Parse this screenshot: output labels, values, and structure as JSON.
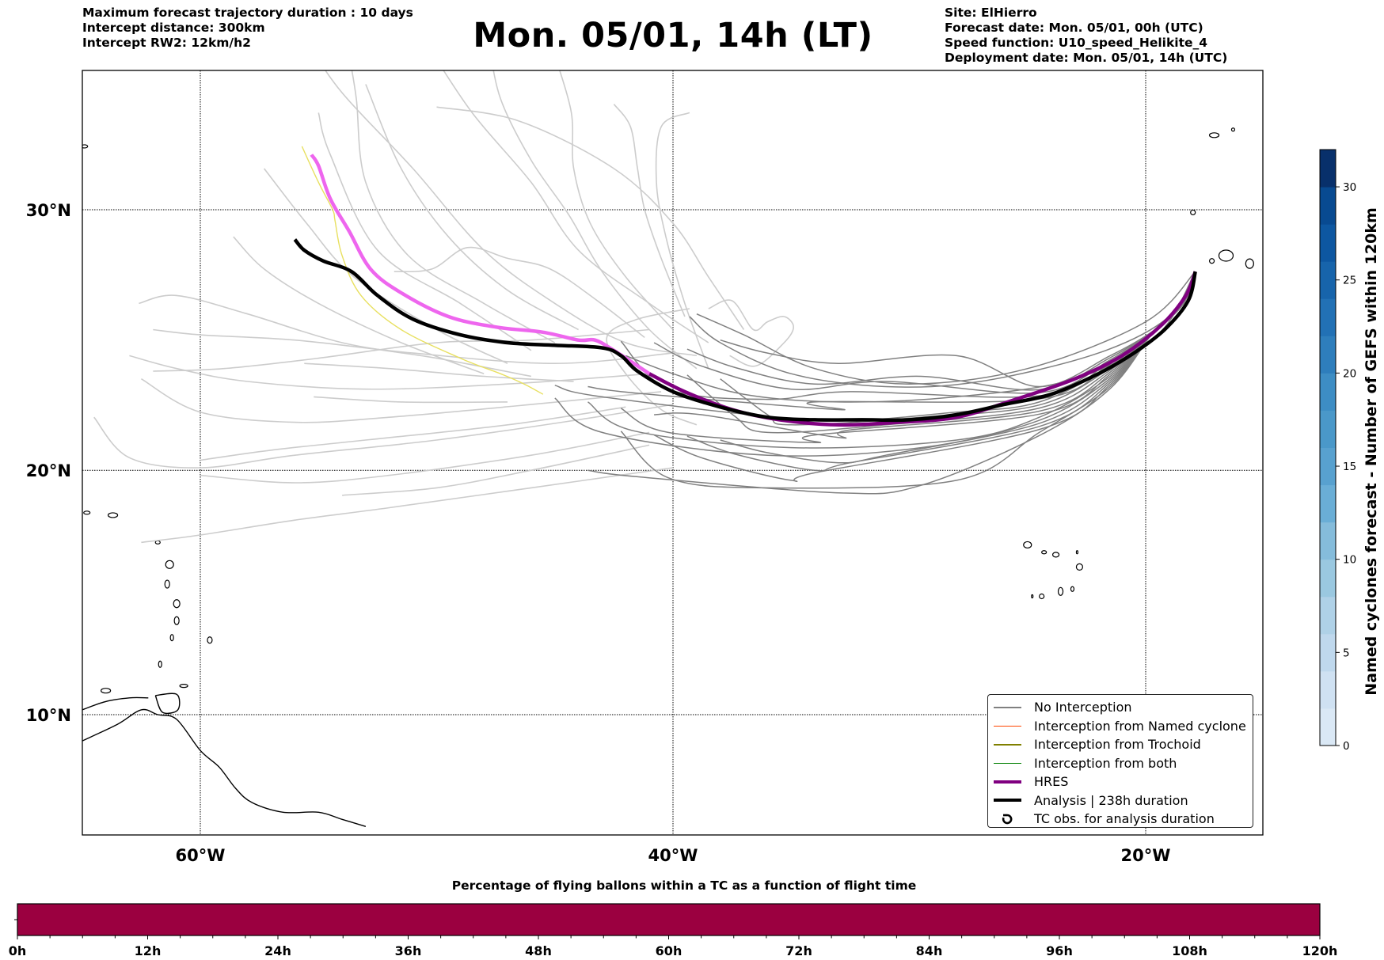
{
  "header": {
    "left_lines": [
      "Maximum forecast trajectory duration : 10 days",
      "Intercept distance: 300km",
      "Intercept RW2: 12km/h2"
    ],
    "title": "Mon. 05/01, 14h (LT)",
    "right_lines": [
      "Site: ElHierro",
      "Forecast date: Mon. 05/01, 00h (UTC)",
      "Speed function: U10_speed_Helikite_4",
      "Deployment date: Mon. 05/01, 14h (UTC)"
    ]
  },
  "map": {
    "lon_range": [
      -65,
      15
    ],
    "lat_range": [
      5.2,
      34.5
    ],
    "lat_gridlines": [
      30,
      20,
      10
    ],
    "lon_gridlines": [
      -60,
      -40,
      -20
    ],
    "lat_labels": [
      "30°N",
      "20°N",
      "10°N"
    ],
    "lon_labels": [
      "60°W",
      "40°W",
      "20°W"
    ],
    "launch_site": {
      "name": "ElHierro",
      "lon": -17.9,
      "lat": 27.7
    },
    "colors": {
      "no_interception": "#808080",
      "named_cyclone": "#ff4500",
      "trochoid": "#808000",
      "both": "#008000",
      "hres": "#800080",
      "hres_late": "#ee66ee",
      "analysis": "#000000",
      "faded_member": "#cccccc",
      "yellow_member": "#e8e060",
      "coast": "#000000"
    },
    "analysis_track": [
      [
        -17.9,
        27.7
      ],
      [
        -18.2,
        26.6
      ],
      [
        -19.2,
        25.5
      ],
      [
        -20.5,
        24.6
      ],
      [
        -22.0,
        23.8
      ],
      [
        -24.0,
        23.0
      ],
      [
        -26.0,
        22.6
      ],
      [
        -28.0,
        22.2
      ],
      [
        -30.0,
        22.0
      ],
      [
        -32.0,
        22.0
      ],
      [
        -34.0,
        22.0
      ],
      [
        -36.0,
        22.1
      ],
      [
        -38.0,
        22.5
      ],
      [
        -40.0,
        23.1
      ],
      [
        -41.5,
        23.9
      ],
      [
        -42.2,
        24.5
      ],
      [
        -43.0,
        24.8
      ],
      [
        -45.0,
        24.9
      ],
      [
        -47.0,
        25.0
      ],
      [
        -49.0,
        25.3
      ],
      [
        -51.0,
        25.9
      ],
      [
        -52.5,
        26.8
      ],
      [
        -53.6,
        27.7
      ],
      [
        -54.8,
        28.1
      ],
      [
        -55.6,
        28.5
      ],
      [
        -56.0,
        28.9
      ]
    ],
    "hres_track_dark": [
      [
        -17.9,
        27.7
      ],
      [
        -18.3,
        26.8
      ],
      [
        -19.3,
        25.7
      ],
      [
        -21.0,
        24.5
      ],
      [
        -23.0,
        23.6
      ],
      [
        -25.5,
        22.8
      ],
      [
        -28.0,
        22.1
      ],
      [
        -30.5,
        21.9
      ],
      [
        -33.0,
        21.8
      ],
      [
        -35.5,
        22.0
      ],
      [
        -37.5,
        22.4
      ],
      [
        -39.5,
        23.1
      ],
      [
        -41.0,
        23.8
      ]
    ],
    "hres_track_light": [
      [
        -41.0,
        23.8
      ],
      [
        -42.5,
        24.7
      ],
      [
        -43.3,
        25.1
      ],
      [
        -44.0,
        25.1
      ],
      [
        -45.5,
        25.4
      ],
      [
        -47.5,
        25.6
      ],
      [
        -49.5,
        26.0
      ],
      [
        -51.5,
        26.9
      ],
      [
        -52.8,
        27.8
      ],
      [
        -53.7,
        29.2
      ],
      [
        -54.5,
        30.4
      ],
      [
        -55.0,
        31.6
      ],
      [
        -55.3,
        32.0
      ]
    ]
  },
  "legend": {
    "items": [
      {
        "label": "No Interception",
        "kind": "line",
        "color": "#808080",
        "weight": "thin"
      },
      {
        "label": "Interception from Named cyclone",
        "kind": "line",
        "color": "#ff4500",
        "weight": "thin"
      },
      {
        "label": "Interception from Trochoid",
        "kind": "line",
        "color": "#808000",
        "weight": "thin"
      },
      {
        "label": "Interception from both",
        "kind": "line",
        "color": "#008000",
        "weight": "thin"
      },
      {
        "label": "HRES",
        "kind": "line",
        "color": "#800080",
        "weight": "thick"
      },
      {
        "label": "Analysis | 238h duration",
        "kind": "line",
        "color": "#000000",
        "weight": "thick"
      },
      {
        "label": "TC obs. for analysis duration",
        "kind": "marker",
        "color": "#000000",
        "weight": "marker"
      }
    ]
  },
  "colorbar": {
    "title": "Named cyclones forecast - Number of GEFS within 120km",
    "min": 0,
    "max": 32,
    "ticks": [
      0,
      5,
      10,
      15,
      20,
      25,
      30
    ],
    "bins": 16,
    "colors": [
      "#dae8f5",
      "#cfe1f2",
      "#bfd8ed",
      "#afd1e7",
      "#9ac8e0",
      "#85bcdb",
      "#6aaed6",
      "#58a1cf",
      "#4a98c9",
      "#3d8dc4",
      "#2e7ebc",
      "#2271b5",
      "#1764ab",
      "#0d57a1",
      "#084a91",
      "#08306b"
    ]
  },
  "time_bar": {
    "title": "Percentage of flying ballons within a TC as a function of flight time",
    "fill_color": "#9b0040",
    "fraction_filled": 1.0,
    "range_hours": [
      0,
      120
    ],
    "tick_labels": [
      "0h",
      "12h",
      "24h",
      "36h",
      "48h",
      "60h",
      "72h",
      "84h",
      "96h",
      "108h",
      "120h"
    ]
  }
}
